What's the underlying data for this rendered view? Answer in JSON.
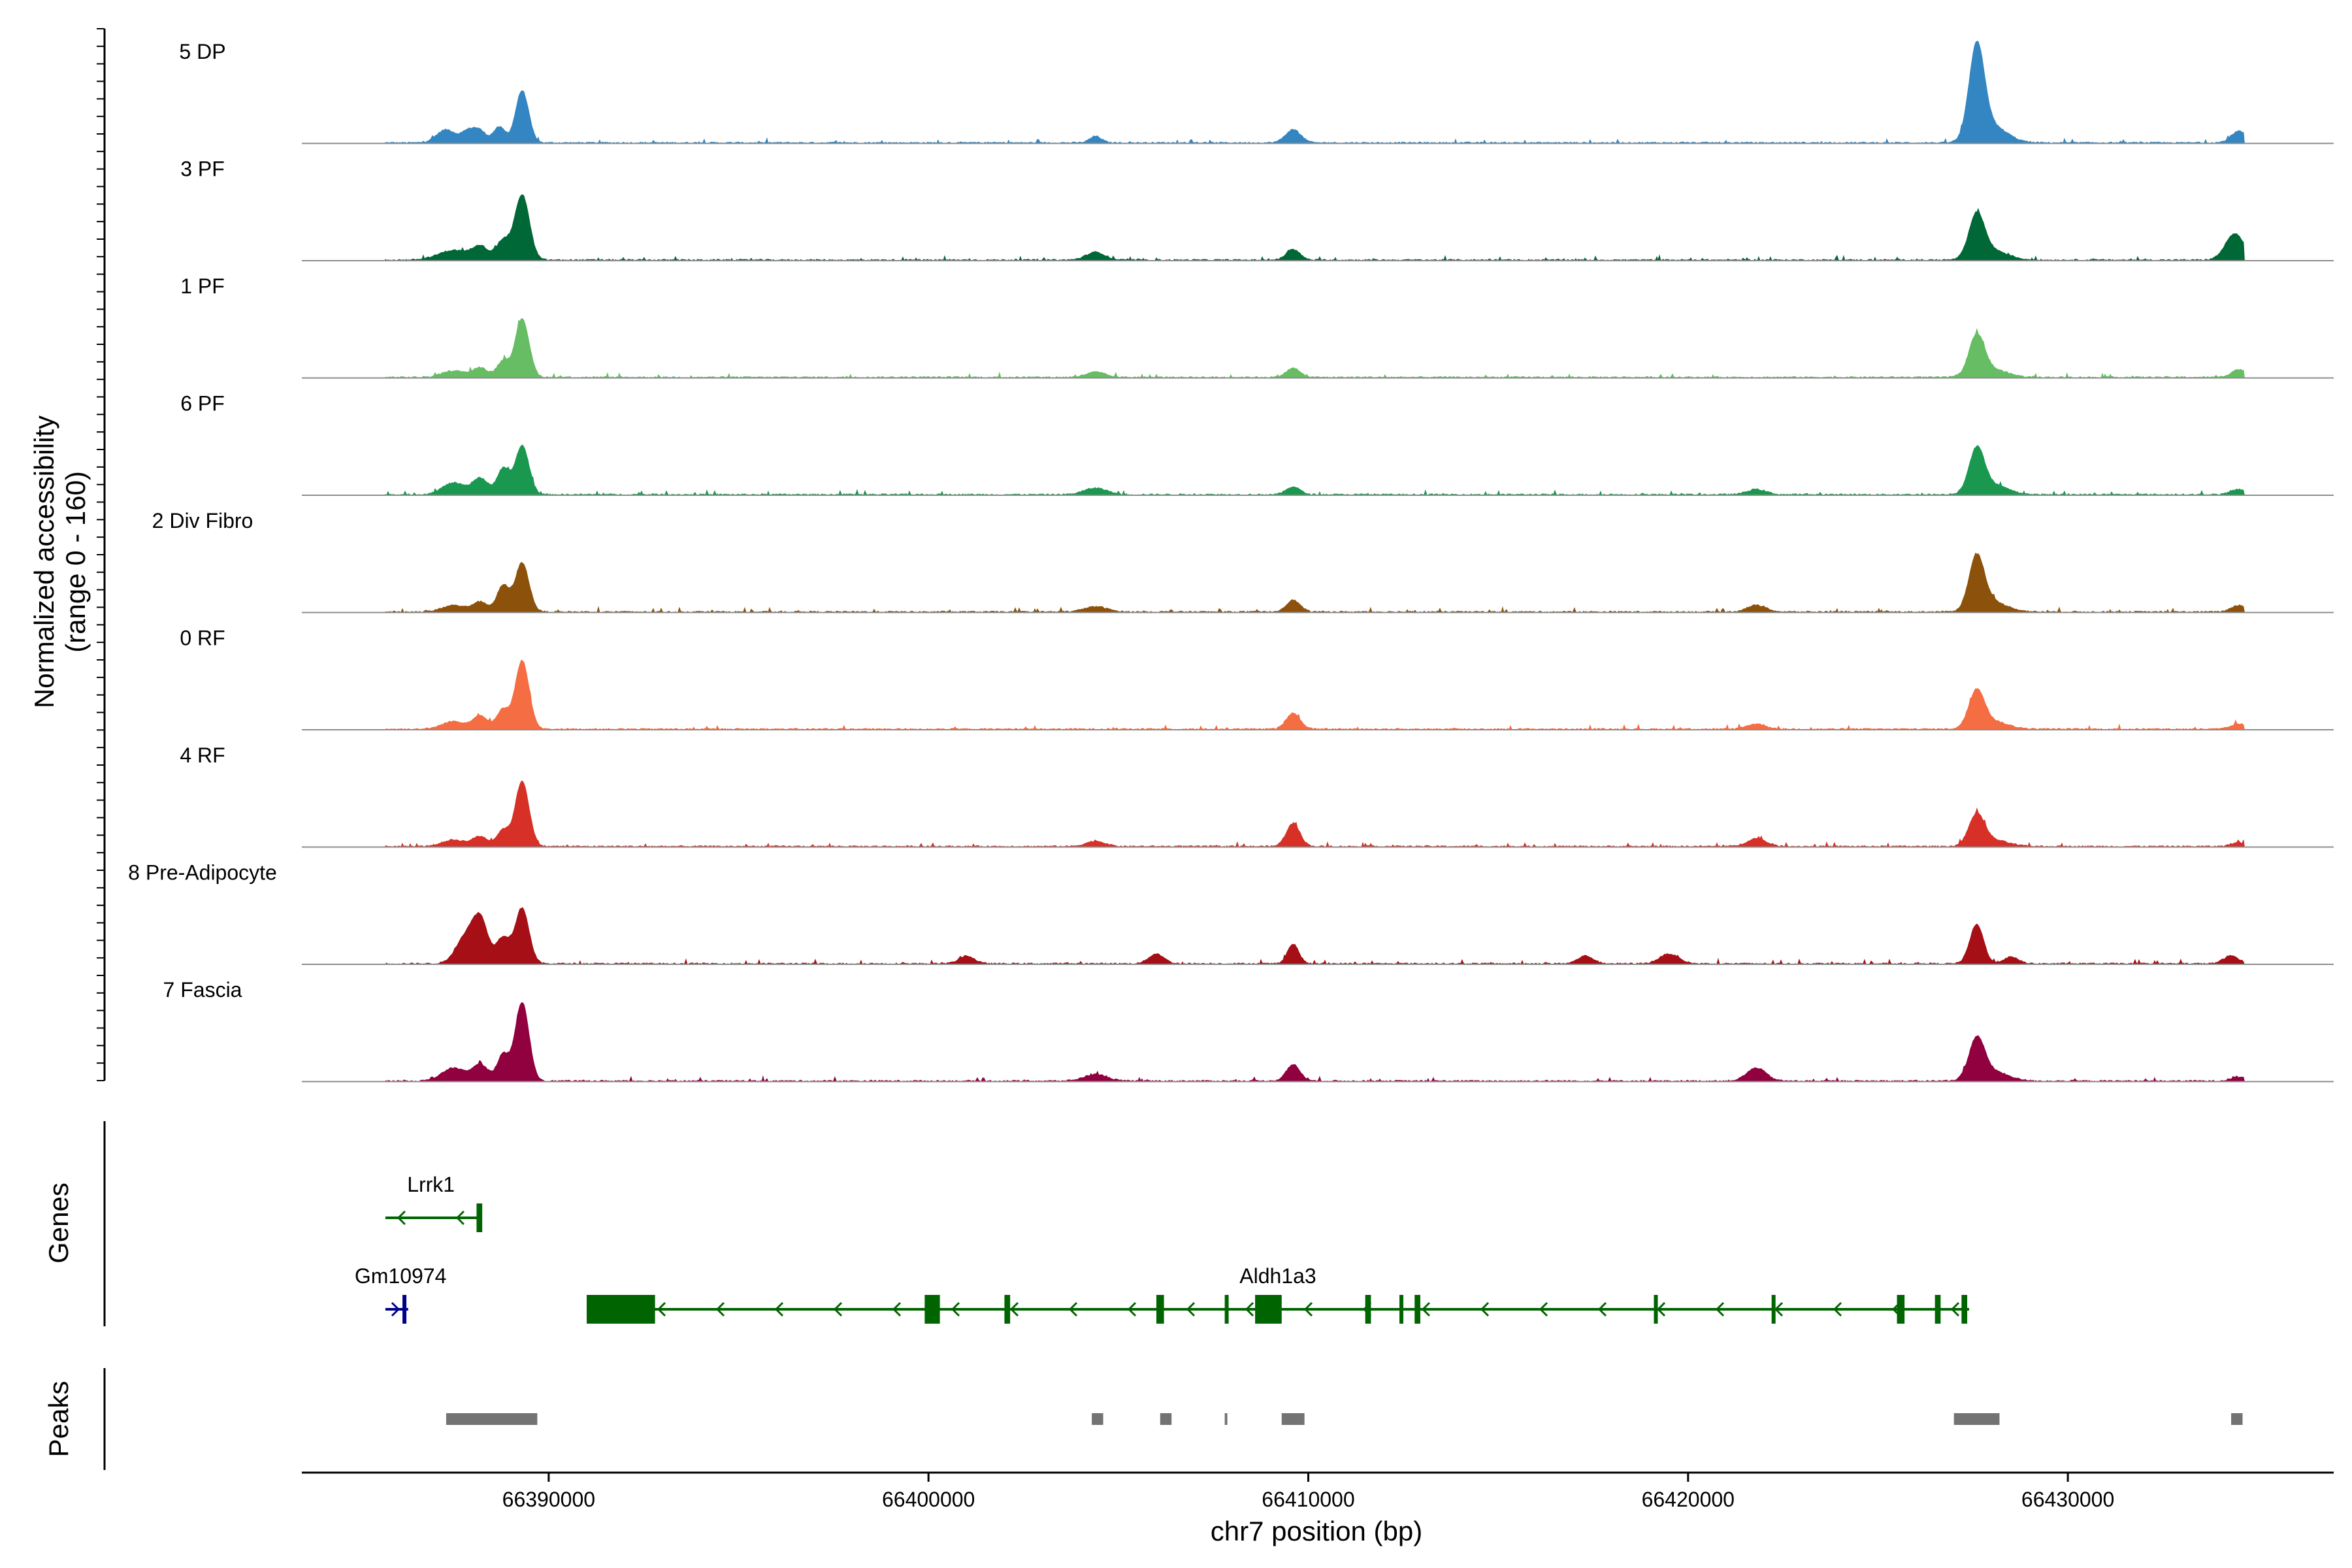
{
  "chart_data": {
    "type": "area",
    "coverage_axis_label_line1": "Normalized accessibility",
    "coverage_axis_label_line2": "(range 0 - 160)",
    "y_range": [
      0,
      160
    ],
    "xlabel": "chr7 position (bp)",
    "x_range": [
      66383500,
      66437000
    ],
    "x_ticks": [
      66390000,
      66400000,
      66410000,
      66420000,
      66430000
    ],
    "x_tick_labels": [
      "66390000",
      "66400000",
      "66410000",
      "66420000",
      "66430000"
    ],
    "genes_label": "Genes",
    "peaks_label": "Peaks",
    "tracks": [
      {
        "name": "5 DP",
        "color": "#3386c2",
        "peaks": [
          [
            66387300,
            20,
            250
          ],
          [
            66387900,
            18,
            180
          ],
          [
            66388200,
            16,
            160
          ],
          [
            66388700,
            24,
            160
          ],
          [
            66389300,
            80,
            170
          ],
          [
            66404400,
            10,
            150
          ],
          [
            66409600,
            20,
            200
          ],
          [
            66427600,
            140,
            200
          ],
          [
            66428000,
            25,
            400
          ],
          [
            66434500,
            18,
            200
          ]
        ]
      },
      {
        "name": "3 PF",
        "color": "#006837",
        "peaks": [
          [
            66387500,
            15,
            400
          ],
          [
            66388200,
            20,
            200
          ],
          [
            66388800,
            30,
            180
          ],
          [
            66389300,
            100,
            190
          ],
          [
            66404400,
            12,
            250
          ],
          [
            66409600,
            16,
            180
          ],
          [
            66427600,
            65,
            200
          ],
          [
            66428000,
            15,
            400
          ],
          [
            66434400,
            40,
            250
          ]
        ]
      },
      {
        "name": "1 PF",
        "color": "#66bd63",
        "peaks": [
          [
            66387500,
            10,
            300
          ],
          [
            66388200,
            14,
            200
          ],
          [
            66388800,
            25,
            160
          ],
          [
            66389300,
            90,
            180
          ],
          [
            66404400,
            8,
            250
          ],
          [
            66409600,
            14,
            180
          ],
          [
            66427600,
            60,
            200
          ],
          [
            66428000,
            12,
            400
          ],
          [
            66434500,
            12,
            200
          ]
        ]
      },
      {
        "name": "6 PF",
        "color": "#1a9850",
        "peaks": [
          [
            66387500,
            18,
            300
          ],
          [
            66388200,
            25,
            200
          ],
          [
            66388800,
            40,
            160
          ],
          [
            66389300,
            75,
            180
          ],
          [
            66404400,
            10,
            300
          ],
          [
            66409600,
            12,
            180
          ],
          [
            66421800,
            8,
            250
          ],
          [
            66427600,
            65,
            200
          ],
          [
            66428000,
            15,
            400
          ],
          [
            66434500,
            8,
            200
          ]
        ]
      },
      {
        "name": "2 Div Fibro",
        "color": "#8c510a",
        "peaks": [
          [
            66387500,
            10,
            300
          ],
          [
            66388200,
            15,
            200
          ],
          [
            66388800,
            40,
            160
          ],
          [
            66389300,
            75,
            180
          ],
          [
            66404400,
            8,
            300
          ],
          [
            66409600,
            18,
            180
          ],
          [
            66421800,
            10,
            250
          ],
          [
            66427600,
            80,
            200
          ],
          [
            66428000,
            15,
            400
          ],
          [
            66434500,
            10,
            200
          ]
        ]
      },
      {
        "name": "0 RF",
        "color": "#f46d43",
        "peaks": [
          [
            66387500,
            12,
            300
          ],
          [
            66388200,
            20,
            200
          ],
          [
            66388800,
            30,
            160
          ],
          [
            66389300,
            105,
            180
          ],
          [
            66409600,
            25,
            180
          ],
          [
            66421800,
            8,
            250
          ],
          [
            66427600,
            55,
            200
          ],
          [
            66428000,
            12,
            400
          ],
          [
            66434500,
            8,
            200
          ]
        ]
      },
      {
        "name": "4 RF",
        "color": "#d73027",
        "peaks": [
          [
            66387500,
            10,
            300
          ],
          [
            66388200,
            15,
            200
          ],
          [
            66388800,
            25,
            160
          ],
          [
            66389300,
            100,
            180
          ],
          [
            66404400,
            8,
            250
          ],
          [
            66409600,
            35,
            180
          ],
          [
            66421800,
            12,
            250
          ],
          [
            66427600,
            45,
            200
          ],
          [
            66428000,
            10,
            400
          ],
          [
            66434500,
            6,
            200
          ]
        ]
      },
      {
        "name": "8 Pre-Adipocyte",
        "color": "#a50f15",
        "peaks": [
          [
            66387800,
            40,
            250
          ],
          [
            66388200,
            65,
            200
          ],
          [
            66388800,
            40,
            180
          ],
          [
            66389300,
            85,
            180
          ],
          [
            66401000,
            12,
            200
          ],
          [
            66406000,
            15,
            200
          ],
          [
            66409600,
            30,
            150
          ],
          [
            66417300,
            12,
            200
          ],
          [
            66419500,
            15,
            250
          ],
          [
            66427600,
            60,
            180
          ],
          [
            66428500,
            10,
            200
          ],
          [
            66434300,
            12,
            200
          ]
        ]
      },
      {
        "name": "7 Fascia",
        "color": "#91003f",
        "peaks": [
          [
            66387500,
            20,
            300
          ],
          [
            66388200,
            25,
            200
          ],
          [
            66388800,
            40,
            160
          ],
          [
            66389300,
            120,
            180
          ],
          [
            66404400,
            10,
            300
          ],
          [
            66409600,
            25,
            180
          ],
          [
            66421800,
            20,
            250
          ],
          [
            66427600,
            60,
            200
          ],
          [
            66428000,
            15,
            400
          ],
          [
            66434500,
            6,
            200
          ]
        ]
      }
    ],
    "genes": [
      {
        "name": "Lrrk1",
        "strand": "-",
        "color": "#006400",
        "row": 0,
        "start": 66385700,
        "end": 66388200,
        "exons": [
          [
            66388100,
            66388250
          ]
        ]
      },
      {
        "name": "Gm10974",
        "strand": "+",
        "color": "#00008b",
        "row": 1,
        "start": 66385700,
        "end": 66386300,
        "exons": [
          [
            66386150,
            66386250
          ]
        ]
      },
      {
        "name": "Aldh1a3",
        "strand": "-",
        "color": "#006400",
        "row": 1,
        "start": 66391000,
        "end": 66427400,
        "exons": [
          [
            66391000,
            66392800
          ],
          [
            66399900,
            66400300
          ],
          [
            66402000,
            66402150
          ],
          [
            66406000,
            66406200
          ],
          [
            66407800,
            66407900
          ],
          [
            66408600,
            66409300
          ],
          [
            66411500,
            66411650
          ],
          [
            66412400,
            66412450
          ],
          [
            66412800,
            66412950
          ],
          [
            66419100,
            66419200
          ],
          [
            66422200,
            66422300
          ],
          [
            66425500,
            66425700
          ],
          [
            66426500,
            66426650
          ],
          [
            66427200,
            66427350
          ]
        ]
      }
    ],
    "peaks_regions": [
      [
        66387300,
        66389700
      ],
      [
        66404300,
        66404600
      ],
      [
        66406100,
        66406400
      ],
      [
        66407800,
        66407850
      ],
      [
        66409300,
        66409900
      ],
      [
        66427000,
        66428200
      ],
      [
        66434300,
        66434600
      ]
    ]
  }
}
